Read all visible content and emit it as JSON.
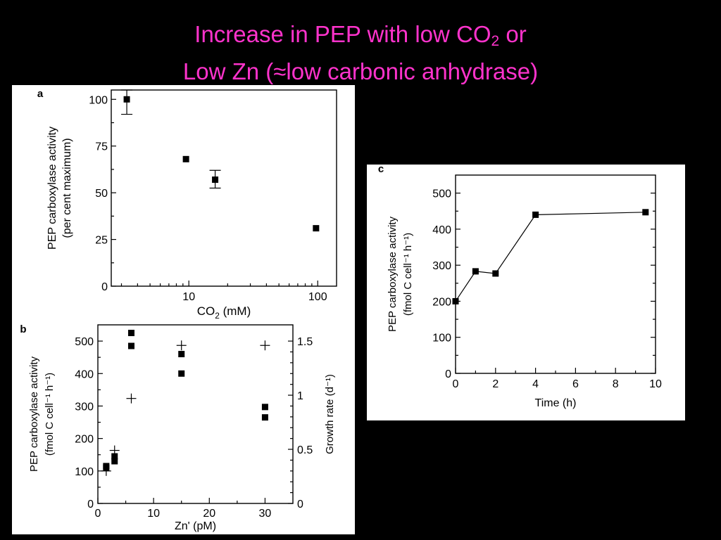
{
  "title": {
    "line1_prefix": "Increase in PEP with low CO",
    "line1_sub": "2",
    "line1_suffix": " or",
    "line2": "Low Zn (≈low carbonic anhydrase)"
  },
  "colors": {
    "title": "#ff33cc",
    "background": "#000000",
    "panel": "#ffffff"
  },
  "chart_data": [
    {
      "panel": "a",
      "type": "scatter",
      "xscale": "log",
      "xlim": [
        2.5,
        140
      ],
      "ylim": [
        0,
        105
      ],
      "xticks": [
        10,
        100
      ],
      "yticks": [
        0,
        25,
        50,
        75,
        100
      ],
      "xlabel_prefix": "CO",
      "xlabel_sub": "2",
      "xlabel_suffix": " (mM)",
      "ylabel_line1": "PEP carboxylase activity",
      "ylabel_line2": "(per cent maximum)",
      "points": [
        {
          "x": 3.3,
          "y": 100,
          "err_low": 92,
          "err_high": 105
        },
        {
          "x": 9.5,
          "y": 68
        },
        {
          "x": 16,
          "y": 57,
          "err_low": 52.5,
          "err_high": 62
        },
        {
          "x": 97,
          "y": 31
        }
      ]
    },
    {
      "panel": "b",
      "type": "scatter",
      "xlim": [
        0,
        35
      ],
      "ylim": [
        0,
        550
      ],
      "y2lim": [
        0,
        1.65
      ],
      "xticks": [
        0,
        10,
        20,
        30
      ],
      "yticks": [
        0,
        100,
        200,
        300,
        400,
        500
      ],
      "y2ticks": [
        "0",
        "0.5",
        "1",
        "1.5"
      ],
      "xlabel": "Zn' (pM)",
      "ylabel_line1": "PEP carboxylase activity",
      "ylabel_line2": "(fmol C cell⁻¹ h⁻¹)",
      "y2label": "Growth rate (d⁻¹)",
      "series": [
        {
          "marker": "square",
          "axis": "left",
          "x": [
            1.5,
            1.5,
            3,
            3,
            6,
            6,
            15,
            15,
            30,
            30
          ],
          "y": [
            110,
            115,
            130,
            145,
            525,
            485,
            460,
            400,
            297,
            265
          ]
        },
        {
          "marker": "plus",
          "axis": "right",
          "x": [
            1.5,
            3,
            6,
            15,
            30
          ],
          "y": [
            0.3,
            0.49,
            0.97,
            1.46,
            1.46
          ]
        }
      ]
    },
    {
      "panel": "c",
      "type": "line",
      "xlim": [
        0,
        10
      ],
      "ylim": [
        0,
        550
      ],
      "xticks": [
        0,
        2,
        4,
        6,
        8,
        10
      ],
      "yticks": [
        0,
        100,
        200,
        300,
        400,
        500
      ],
      "xlabel": "Time (h)",
      "ylabel_line1": "PEP carboxylase activity",
      "ylabel_line2": "(fmol C cell⁻¹ h⁻¹)",
      "x": [
        0,
        1,
        2,
        4,
        9.5
      ],
      "y": [
        200,
        283,
        277,
        440,
        447
      ]
    }
  ]
}
